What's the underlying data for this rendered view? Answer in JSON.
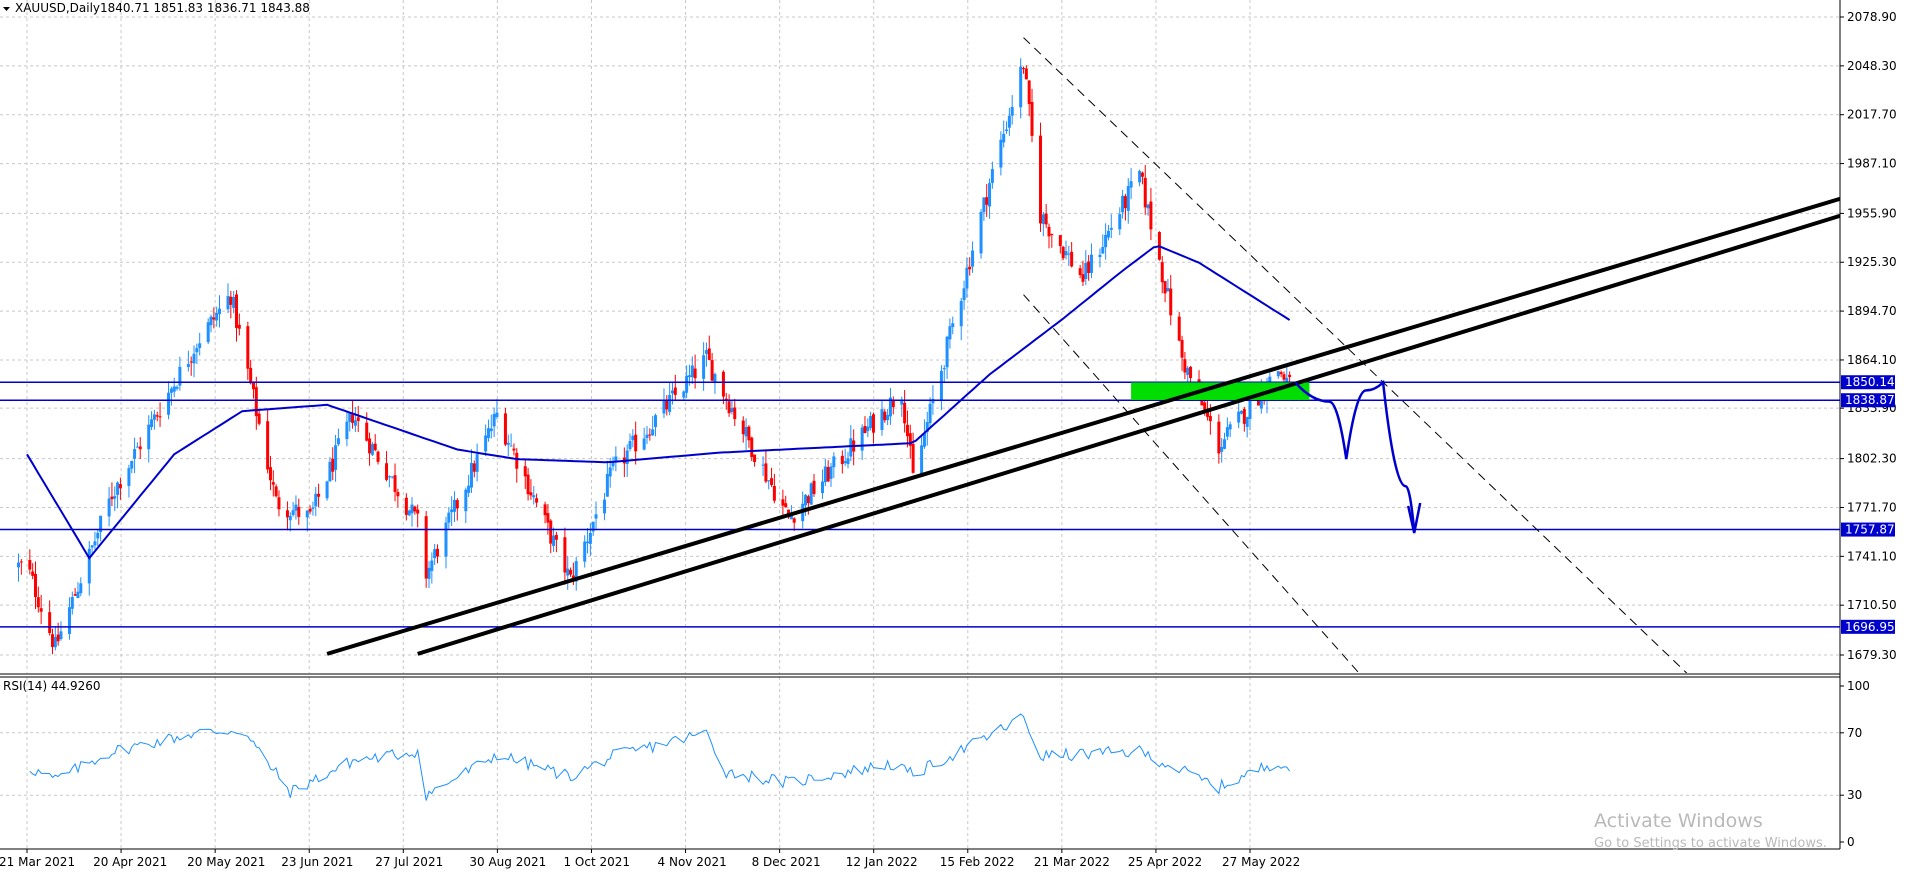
{
  "header": {
    "symbol": "XAUUSD,Daily",
    "ohlc": "1840.71 1851.83 1836.71 1843.88"
  },
  "rsi": {
    "label": "RSI(14) 44.9260",
    "levels": [
      "100",
      "70",
      "30",
      "0"
    ]
  },
  "watermark": {
    "title": "Activate Windows",
    "subtitle": "Go to Settings to activate Windows."
  },
  "colors": {
    "bull": "#1e90ff",
    "bear": "#ff0000",
    "ma": "#0000cd",
    "level": "#0000cd",
    "zone": "#00dd00",
    "trend": "#000000",
    "rsi": "#1e90ff",
    "grid": "#c8c8c8"
  },
  "chart_data": {
    "type": "candlestick",
    "symbol": "XAUUSD",
    "timeframe": "Daily",
    "price_axis": {
      "ticks": [
        "2078.90",
        "2048.30",
        "2017.70",
        "1987.10",
        "1955.90",
        "1925.30",
        "1894.70",
        "1864.10",
        "1833.90",
        "1802.30",
        "1771.70",
        "1741.10",
        "1710.50",
        "1679.30"
      ],
      "range": [
        1670,
        2086
      ]
    },
    "date_axis": {
      "ticks": [
        "21 Mar 2021",
        "20 Apr 2021",
        "20 May 2021",
        "23 Jun 2021",
        "27 Jul 2021",
        "30 Aug 2021",
        "1 Oct 2021",
        "4 Nov 2021",
        "8 Dec 2021",
        "12 Jan 2022",
        "15 Feb 2022",
        "21 Mar 2022",
        "25 Apr 2022",
        "27 May 2022"
      ]
    },
    "price_anchors": [
      {
        "date": "2021-03-21",
        "close": 1735
      },
      {
        "date": "2021-03-31",
        "close": 1684
      },
      {
        "date": "2021-04-20",
        "close": 1780
      },
      {
        "date": "2021-05-20",
        "close": 1875
      },
      {
        "date": "2021-06-01",
        "close": 1905
      },
      {
        "date": "2021-06-17",
        "close": 1775
      },
      {
        "date": "2021-06-29",
        "close": 1765
      },
      {
        "date": "2021-07-14",
        "close": 1830
      },
      {
        "date": "2021-08-06",
        "close": 1762
      },
      {
        "date": "2021-08-09",
        "close": 1730
      },
      {
        "date": "2021-09-03",
        "close": 1830
      },
      {
        "date": "2021-09-29",
        "close": 1726
      },
      {
        "date": "2021-10-14",
        "close": 1795
      },
      {
        "date": "2021-11-16",
        "close": 1865
      },
      {
        "date": "2021-12-15",
        "close": 1765
      },
      {
        "date": "2022-01-24",
        "close": 1845
      },
      {
        "date": "2022-01-28",
        "close": 1790
      },
      {
        "date": "2022-02-24",
        "close": 1975
      },
      {
        "date": "2022-03-08",
        "close": 2050
      },
      {
        "date": "2022-03-14",
        "close": 1955
      },
      {
        "date": "2022-03-29",
        "close": 1915
      },
      {
        "date": "2022-04-18",
        "close": 1980
      },
      {
        "date": "2022-05-03",
        "close": 1865
      },
      {
        "date": "2022-05-16",
        "close": 1810
      },
      {
        "date": "2022-06-06",
        "close": 1858
      },
      {
        "date": "2022-06-12",
        "close": 1844
      }
    ],
    "moving_average_anchors": [
      {
        "date": "2021-03-21",
        "value": 1805
      },
      {
        "date": "2021-04-12",
        "value": 1740
      },
      {
        "date": "2021-05-12",
        "value": 1805
      },
      {
        "date": "2021-06-05",
        "value": 1832
      },
      {
        "date": "2021-07-05",
        "value": 1836
      },
      {
        "date": "2021-08-20",
        "value": 1808
      },
      {
        "date": "2021-09-10",
        "value": 1802
      },
      {
        "date": "2021-10-12",
        "value": 1800
      },
      {
        "date": "2021-11-20",
        "value": 1806
      },
      {
        "date": "2022-01-05",
        "value": 1810
      },
      {
        "date": "2022-01-28",
        "value": 1812
      },
      {
        "date": "2022-02-24",
        "value": 1855
      },
      {
        "date": "2022-03-22",
        "value": 1890
      },
      {
        "date": "2022-04-12",
        "value": 1920
      },
      {
        "date": "2022-04-24",
        "value": 1936
      },
      {
        "date": "2022-05-09",
        "value": 1925
      },
      {
        "date": "2022-06-11",
        "value": 1888
      }
    ],
    "horizontal_levels": [
      {
        "value": 1850.14,
        "label": "1850.14"
      },
      {
        "value": 1838.87,
        "label": "1838.87"
      },
      {
        "value": 1757.87,
        "label": "1757.87"
      },
      {
        "value": 1696.95,
        "label": "1696.95"
      }
    ],
    "zone": {
      "from": "2022-04-15",
      "to": "2022-06-17",
      "low": 1839,
      "high": 1850
    },
    "trendlines": [
      {
        "style": "solid",
        "from": {
          "date": "2021-07-05",
          "price": 1680
        },
        "to": {
          "date": "2023-02-10",
          "price": 1992
        }
      },
      {
        "style": "solid",
        "from": {
          "date": "2021-08-06",
          "price": 1680
        },
        "to": {
          "date": "2023-02-10",
          "price": 1982
        }
      },
      {
        "style": "dashed",
        "from": {
          "date": "2022-03-08",
          "price": 2066
        },
        "to": {
          "date": "2022-10-30",
          "price": 1665
        }
      },
      {
        "style": "dashed",
        "from": {
          "date": "2022-03-08",
          "price": 1905
        },
        "to": {
          "date": "2022-07-06",
          "price": 1665
        }
      }
    ],
    "projection": [
      {
        "date": "2022-06-12",
        "price": 1850
      },
      {
        "date": "2022-06-24",
        "price": 1838
      },
      {
        "date": "2022-06-30",
        "price": 1802
      },
      {
        "date": "2022-07-07",
        "price": 1845
      },
      {
        "date": "2022-07-13",
        "price": 1850
      },
      {
        "date": "2022-07-21",
        "price": 1785
      },
      {
        "date": "2022-07-24",
        "price": 1757
      }
    ],
    "rsi_series": {
      "name": "RSI(14)",
      "latest": 44.926,
      "range": [
        0,
        100
      ],
      "anchors": [
        {
          "date": "2021-03-21",
          "value": 48
        },
        {
          "date": "2021-03-31",
          "value": 40
        },
        {
          "date": "2021-04-20",
          "value": 58
        },
        {
          "date": "2021-05-20",
          "value": 70
        },
        {
          "date": "2021-06-05",
          "value": 72
        },
        {
          "date": "2021-06-22",
          "value": 32
        },
        {
          "date": "2021-07-14",
          "value": 52
        },
        {
          "date": "2021-08-06",
          "value": 58
        },
        {
          "date": "2021-08-09",
          "value": 30
        },
        {
          "date": "2021-09-03",
          "value": 56
        },
        {
          "date": "2021-09-29",
          "value": 42
        },
        {
          "date": "2021-10-14",
          "value": 55
        },
        {
          "date": "2021-11-16",
          "value": 70
        },
        {
          "date": "2021-11-23",
          "value": 45
        },
        {
          "date": "2021-12-15",
          "value": 38
        },
        {
          "date": "2022-01-20",
          "value": 50
        },
        {
          "date": "2022-01-28",
          "value": 43
        },
        {
          "date": "2022-02-24",
          "value": 68
        },
        {
          "date": "2022-03-08",
          "value": 80
        },
        {
          "date": "2022-03-14",
          "value": 55
        },
        {
          "date": "2022-04-18",
          "value": 58
        },
        {
          "date": "2022-05-16",
          "value": 35
        },
        {
          "date": "2022-06-06",
          "value": 52
        },
        {
          "date": "2022-06-12",
          "value": 45
        }
      ]
    }
  }
}
